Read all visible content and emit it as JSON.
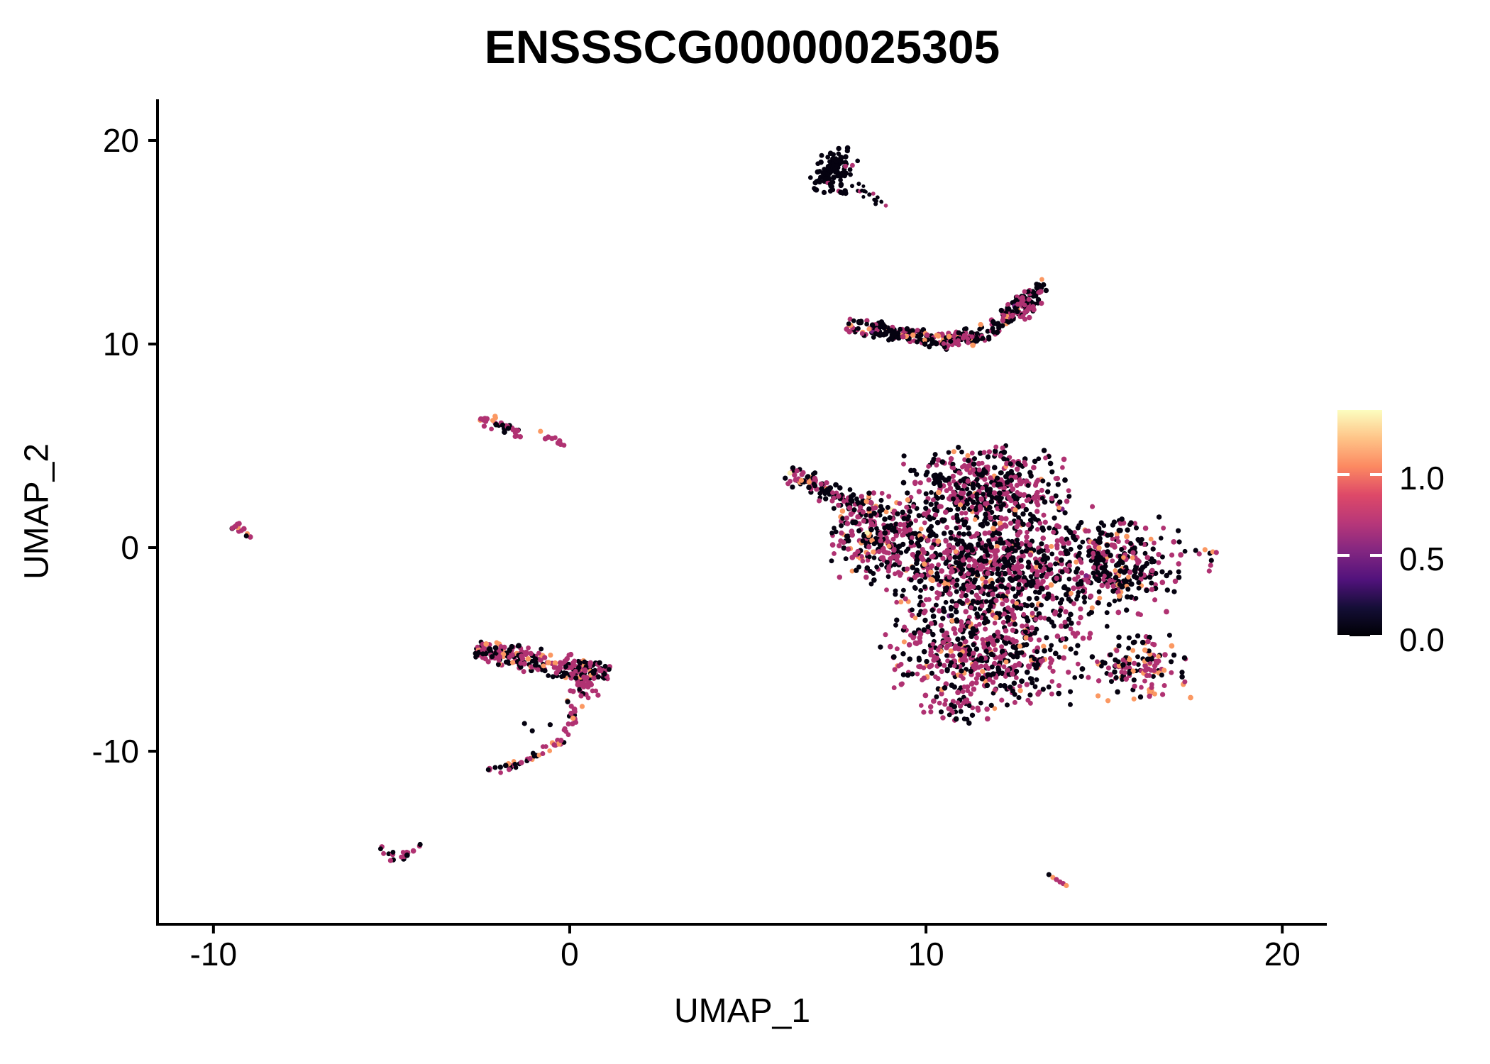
{
  "chart_data": {
    "type": "scatter",
    "title": "ENSSSCG00000025305",
    "xlabel": "UMAP_1",
    "ylabel": "UMAP_2",
    "x_ticks": [
      -10,
      0,
      10,
      20
    ],
    "y_ticks": [
      -10,
      0,
      10,
      20
    ],
    "x_range": [
      -11.57,
      21.25
    ],
    "y_range": [
      -18.5,
      22.02
    ],
    "grid": false,
    "point_radius_px": 3.6,
    "palette": {
      "zero": "#050210",
      "low": "#7b2182",
      "mid": "#b03272",
      "high": "#fb9862",
      "top": "#fbf0b2"
    },
    "legend": {
      "position": "right",
      "vmin": 0.0,
      "vmax": 1.4,
      "ticks": [
        0.0,
        0.5,
        1.0
      ],
      "labels": [
        "0.0",
        "0.5",
        "1.0"
      ],
      "colormap": "magma",
      "colormap_stops": [
        [
          0.0,
          "#000004"
        ],
        [
          0.125,
          "#140e36"
        ],
        [
          0.25,
          "#51127c"
        ],
        [
          0.375,
          "#822681"
        ],
        [
          0.5,
          "#b73779"
        ],
        [
          0.625,
          "#de4968"
        ],
        [
          0.75,
          "#fc8961"
        ],
        [
          0.875,
          "#fec488"
        ],
        [
          1.0,
          "#fcfdbf"
        ]
      ]
    },
    "clusters": [
      {
        "id": "comet-top",
        "parts": [
          {
            "kind": "gauss",
            "cx": 7.45,
            "cy": 18.75,
            "rx": 0.55,
            "ry": 0.75,
            "rot": -38,
            "n": 80,
            "mix": {
              "zero": 0.94,
              "mid": 0.06
            }
          },
          {
            "kind": "gauss",
            "cx": 7.25,
            "cy": 17.9,
            "rx": 0.55,
            "ry": 0.55,
            "rot": 0,
            "n": 30,
            "mix": {
              "zero": 0.97,
              "mid": 0.03
            }
          },
          {
            "kind": "path",
            "pts": [
              [
                7.9,
                17.8
              ],
              [
                8.4,
                17.35
              ],
              [
                8.9,
                16.75
              ]
            ],
            "w": 7,
            "n": 20,
            "r": 2.8,
            "mix": {
              "zero": 0.92,
              "mid": 0.08
            }
          }
        ]
      },
      {
        "id": "crescent",
        "parts": [
          {
            "kind": "path",
            "pts": [
              [
                7.83,
                10.8
              ],
              [
                8.71,
                10.73
              ],
              [
                9.7,
                10.42
              ],
              [
                10.7,
                10.14
              ],
              [
                11.59,
                10.52
              ],
              [
                12.39,
                11.5
              ],
              [
                12.99,
                12.4
              ],
              [
                13.33,
                12.86
              ]
            ],
            "w": 14,
            "n": 340,
            "mix": {
              "zero": 0.56,
              "mid": 0.35,
              "high": 0.08,
              "low": 0.01
            }
          },
          {
            "kind": "gauss",
            "cx": 12.8,
            "cy": 12.0,
            "rx": 0.45,
            "ry": 0.7,
            "rot": -35,
            "n": 45,
            "mix": {
              "mid": 0.62,
              "zero": 0.3,
              "high": 0.08
            }
          }
        ]
      },
      {
        "id": "left-small",
        "parts": [
          {
            "kind": "path",
            "pts": [
              [
                -2.55,
                6.41
              ],
              [
                -1.95,
                6.0
              ],
              [
                -1.41,
                5.57
              ]
            ],
            "w": 10,
            "n": 34,
            "mix": {
              "zero": 0.38,
              "mid": 0.47,
              "high": 0.15
            }
          },
          {
            "kind": "dots",
            "dots": [
              {
                "x": -0.82,
                "y": 5.71,
                "c": "high"
              }
            ]
          },
          {
            "kind": "path",
            "pts": [
              [
                -0.62,
                5.44
              ],
              [
                -0.14,
                5.02
              ]
            ],
            "w": 5,
            "n": 10,
            "mix": {
              "mid": 0.92,
              "low": 0.08
            }
          }
        ]
      },
      {
        "id": "far-left-tiny",
        "parts": [
          {
            "kind": "path",
            "pts": [
              [
                -9.4,
                1.05
              ],
              [
                -8.87,
                0.3
              ]
            ],
            "w": 8,
            "n": 13,
            "mix": {
              "zero": 0.42,
              "mid": 0.5,
              "high": 0.08
            }
          }
        ]
      },
      {
        "id": "main-blob",
        "parts": [
          {
            "kind": "path",
            "pts": [
              [
                6.18,
                3.62
              ],
              [
                7.3,
                2.75
              ],
              [
                8.5,
                1.8
              ]
            ],
            "w": 17,
            "n": 120,
            "mix": {
              "zero": 0.58,
              "mid": 0.36,
              "high": 0.06
            }
          },
          {
            "kind": "dots",
            "dots": [
              {
                "x": 6.18,
                "y": 3.66,
                "c": "top"
              },
              {
                "x": 6.5,
                "y": 3.3,
                "c": "high"
              },
              {
                "x": 7.0,
                "y": 2.3,
                "c": "mid"
              }
            ]
          },
          {
            "kind": "gauss",
            "cx": 8.7,
            "cy": 0.5,
            "rx": 1.35,
            "ry": 2.0,
            "rot": 0,
            "n": 300,
            "mix": {
              "zero": 0.47,
              "mid": 0.45,
              "high": 0.075,
              "top": 0.005
            }
          },
          {
            "kind": "gauss",
            "cx": 11.7,
            "cy": 3.0,
            "rx": 2.1,
            "ry": 1.8,
            "rot": 0,
            "n": 430,
            "mix": {
              "zero": 0.56,
              "mid": 0.39,
              "high": 0.05
            }
          },
          {
            "kind": "gauss",
            "cx": 12.1,
            "cy": -1.0,
            "rx": 3.0,
            "ry": 3.0,
            "rot": 0,
            "n": 950,
            "mix": {
              "zero": 0.53,
              "mid": 0.41,
              "high": 0.055,
              "low": 0.005
            }
          },
          {
            "kind": "gauss",
            "cx": 15.5,
            "cy": -0.9,
            "rx": 1.6,
            "ry": 2.1,
            "rot": 0,
            "n": 270,
            "mix": {
              "zero": 0.66,
              "mid": 0.28,
              "high": 0.06
            }
          },
          {
            "kind": "gauss",
            "cx": 11.7,
            "cy": -5.3,
            "rx": 2.6,
            "ry": 2.3,
            "rot": 0,
            "n": 520,
            "mix": {
              "zero": 0.44,
              "mid": 0.48,
              "high": 0.08
            }
          },
          {
            "kind": "gauss",
            "cx": 15.9,
            "cy": -5.9,
            "rx": 1.35,
            "ry": 1.5,
            "rot": 0,
            "n": 140,
            "mix": {
              "zero": 0.36,
              "mid": 0.44,
              "high": 0.19,
              "top": 0.01
            }
          },
          {
            "kind": "gauss",
            "cx": 10.9,
            "cy": -7.9,
            "rx": 0.9,
            "ry": 0.8,
            "rot": 0,
            "n": 40,
            "mix": {
              "zero": 0.5,
              "mid": 0.5
            }
          }
        ]
      },
      {
        "id": "right-small",
        "parts": [
          {
            "kind": "dots",
            "dots": [
              {
                "x": 17.57,
                "y": -0.14,
                "c": "zero"
              },
              {
                "x": 17.67,
                "y": -0.31,
                "c": "mid"
              },
              {
                "x": 17.83,
                "y": -0.1,
                "c": "high"
              },
              {
                "x": 17.97,
                "y": -0.28,
                "c": "zero"
              },
              {
                "x": 18.05,
                "y": -0.21,
                "c": "high"
              },
              {
                "x": 18.15,
                "y": -0.24,
                "c": "mid"
              },
              {
                "x": 18.01,
                "y": -0.63,
                "c": "zero"
              },
              {
                "x": 17.99,
                "y": -0.87,
                "c": "mid"
              },
              {
                "x": 17.95,
                "y": -1.15,
                "c": "mid"
              }
            ]
          }
        ]
      },
      {
        "id": "hook",
        "parts": [
          {
            "kind": "path",
            "pts": [
              [
                -2.65,
                -5.0
              ],
              [
                -1.2,
                -5.5
              ],
              [
                0.2,
                -5.9
              ],
              [
                1.04,
                -6.2
              ]
            ],
            "w": 19,
            "n": 240,
            "mix": {
              "zero": 0.42,
              "mid": 0.45,
              "high": 0.12,
              "top": 0.01
            }
          },
          {
            "kind": "gauss",
            "cx": 0.3,
            "cy": -6.7,
            "rx": 0.45,
            "ry": 0.65,
            "rot": 0,
            "n": 42,
            "mix": {
              "mid": 0.7,
              "zero": 0.22,
              "high": 0.08
            }
          },
          {
            "kind": "path",
            "pts": [
              [
                -0.06,
                -7.42
              ],
              [
                0.1,
                -8.36
              ],
              [
                -0.16,
                -9.34
              ],
              [
                -0.82,
                -10.1
              ],
              [
                -1.61,
                -10.73
              ],
              [
                -2.29,
                -11.11
              ]
            ],
            "w": 9,
            "n": 62,
            "mix": {
              "mid": 0.52,
              "zero": 0.32,
              "high": 0.16
            }
          },
          {
            "kind": "dots",
            "dots": [
              {
                "x": -1.27,
                "y": -8.64,
                "c": "zero"
              },
              {
                "x": -1.05,
                "y": -9.0,
                "c": "zero"
              },
              {
                "x": -0.55,
                "y": -8.7,
                "c": "zero"
              },
              {
                "x": 0.35,
                "y": -7.8,
                "c": "high"
              }
            ]
          }
        ]
      },
      {
        "id": "v-small",
        "parts": [
          {
            "kind": "path",
            "pts": [
              [
                -5.34,
                -14.7
              ],
              [
                -4.88,
                -15.33
              ],
              [
                -4.28,
                -14.67
              ]
            ],
            "w": 8,
            "n": 18,
            "mix": {
              "zero": 0.36,
              "mid": 0.58,
              "high": 0.06
            }
          },
          {
            "kind": "dots",
            "dots": [
              {
                "x": -4.2,
                "y": -14.58,
                "c": "zero"
              }
            ]
          }
        ]
      },
      {
        "id": "bottom-right-streak",
        "parts": [
          {
            "kind": "dots",
            "dots": [
              {
                "x": 13.45,
                "y": -16.06,
                "c": "zero"
              },
              {
                "x": 13.56,
                "y": -16.2,
                "c": "high"
              },
              {
                "x": 13.66,
                "y": -16.3,
                "c": "mid"
              },
              {
                "x": 13.76,
                "y": -16.42,
                "c": "mid"
              },
              {
                "x": 13.85,
                "y": -16.5,
                "c": "mid"
              },
              {
                "x": 13.94,
                "y": -16.6,
                "c": "high"
              }
            ]
          }
        ]
      }
    ]
  }
}
